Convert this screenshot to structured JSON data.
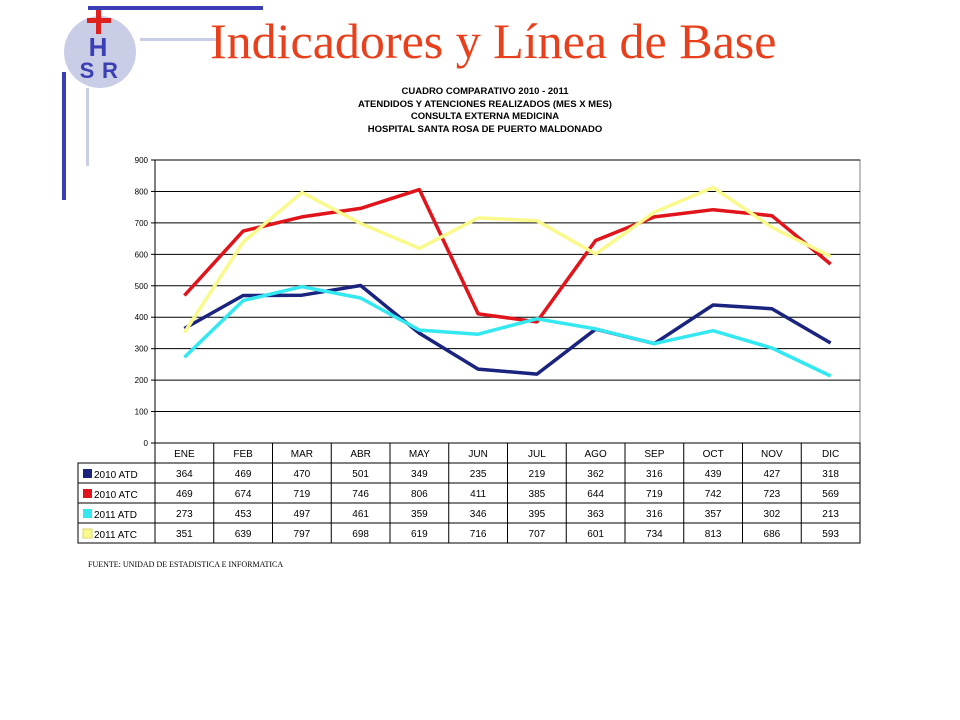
{
  "header": {
    "title": "Indicadores y Línea de Base",
    "logo_text": [
      "H",
      "S",
      "R"
    ]
  },
  "chart_heading": [
    "CUADRO COMPARATIVO 2010 - 2011",
    "ATENDIDOS Y ATENCIONES REALIZADOS (MES X MES)",
    "CONSULTA EXTERNA MEDICINA",
    "HOSPITAL SANTA ROSA DE PUERTO MALDONADO"
  ],
  "source_note": "FUENTE: UNIDAD DE ESTADISTICA E INFORMATICA",
  "colors": {
    "title": "#e8401c",
    "decor_blue": "#3b3fb5",
    "decor_light": "#c9cde6",
    "logo_circle": "#c9cde6",
    "logo_cross": "#e0201c"
  },
  "chart_data": {
    "type": "line",
    "title": "CUADRO COMPARATIVO 2010 - 2011",
    "ylim": [
      0,
      900
    ],
    "yticks": [
      0,
      100,
      200,
      300,
      400,
      500,
      600,
      700,
      800,
      900
    ],
    "grid": true,
    "legend": "data-table",
    "categories": [
      "ENE",
      "FEB",
      "MAR",
      "ABR",
      "MAY",
      "JUN",
      "JUL",
      "AGO",
      "SEP",
      "OCT",
      "NOV",
      "DIC"
    ],
    "series": [
      {
        "name": "2010 ATD",
        "color": "#1a237e",
        "values": [
          364,
          469,
          470,
          501,
          349,
          235,
          219,
          362,
          316,
          439,
          427,
          318
        ]
      },
      {
        "name": "2010 ATC",
        "color": "#e0141a",
        "values": [
          469,
          674,
          719,
          746,
          806,
          411,
          385,
          644,
          719,
          742,
          723,
          569
        ]
      },
      {
        "name": "2011 ATD",
        "color": "#33e8f0",
        "values": [
          273,
          453,
          497,
          461,
          359,
          346,
          395,
          363,
          316,
          357,
          302,
          213
        ]
      },
      {
        "name": "2011 ATC",
        "color": "#fafa8c",
        "values": [
          351,
          639,
          797,
          698,
          619,
          716,
          707,
          601,
          734,
          813,
          686,
          593
        ]
      }
    ]
  }
}
